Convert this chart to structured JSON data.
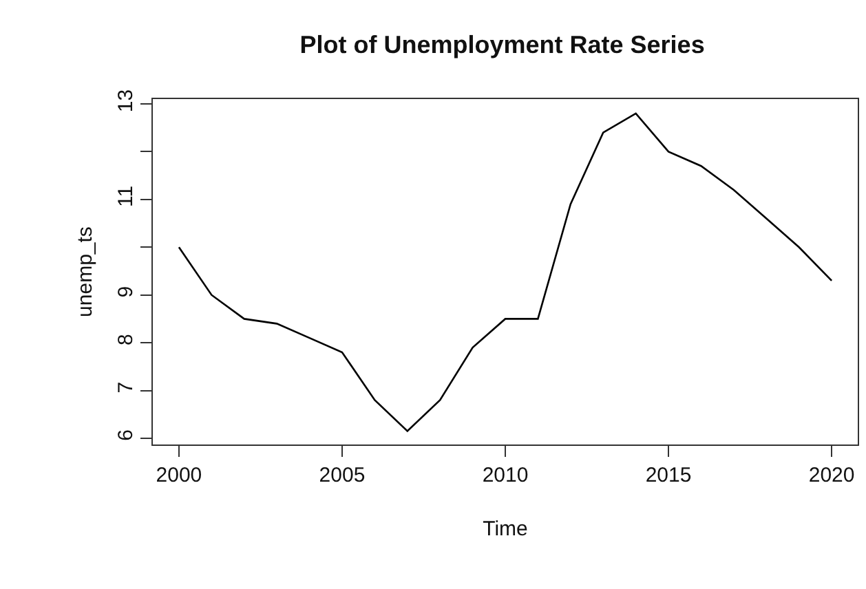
{
  "chart_data": {
    "type": "line",
    "title": "Plot of Unemployment Rate Series",
    "xlabel": "Time",
    "ylabel": "unemp_ts",
    "x": [
      2000,
      2001,
      2002,
      2003,
      2004,
      2005,
      2006,
      2007,
      2008,
      2009,
      2010,
      2011,
      2012,
      2013,
      2014,
      2015,
      2016,
      2017,
      2018,
      2019,
      2020
    ],
    "series": [
      {
        "color": "#000000",
        "values": [
          10.0,
          9.0,
          8.5,
          8.4,
          8.1,
          7.8,
          6.8,
          6.15,
          6.8,
          7.9,
          8.5,
          8.5,
          10.9,
          12.4,
          12.8,
          12.0,
          11.7,
          11.2,
          10.6,
          10.0,
          9.3
        ]
      }
    ],
    "xlim": [
      1999.2,
      2020.8
    ],
    "xticks": [
      2000,
      2005,
      2010,
      2015,
      2020
    ],
    "ylim": [
      5.87,
      13.1
    ],
    "yticks": [
      6,
      7,
      8,
      9,
      {
        "value": 10,
        "label": null
      },
      11,
      {
        "value": 12,
        "label": null
      },
      13
    ],
    "marker": "none",
    "line_style": "solid"
  }
}
